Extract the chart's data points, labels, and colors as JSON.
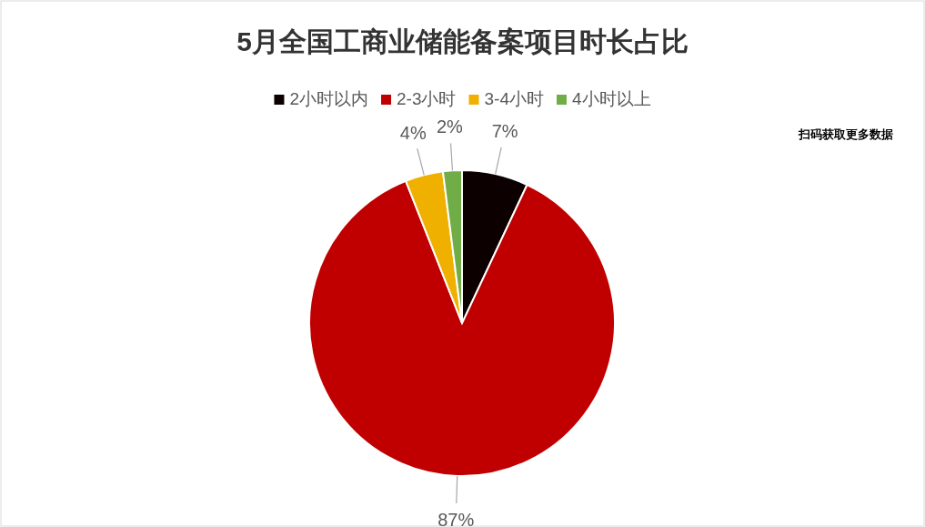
{
  "chart_data": {
    "type": "pie",
    "title": "5月全国工商业储能备案项目时长占比",
    "categories": [
      "2小时以内",
      "2-3小时",
      "3-4小时",
      "4小时以上"
    ],
    "values": [
      7,
      87,
      4,
      2
    ],
    "colors": [
      "#0d0000",
      "#c00000",
      "#f0b000",
      "#70ad47"
    ],
    "value_labels": [
      "7%",
      "87%",
      "4%",
      "2%"
    ],
    "legend": "top",
    "annotations": [
      "扫码获取更多数据"
    ]
  }
}
